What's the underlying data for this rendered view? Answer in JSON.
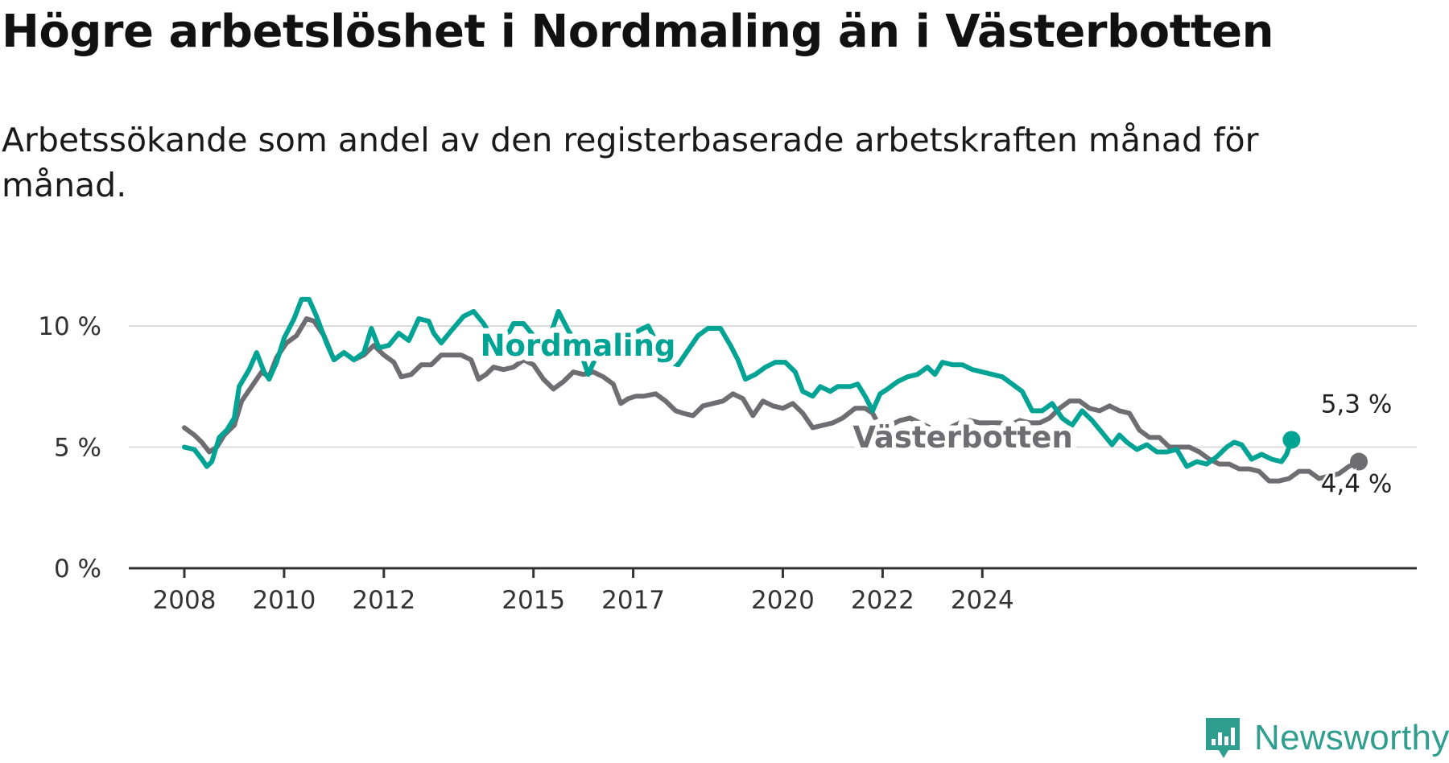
{
  "header": {
    "title": "Högre arbetslöshet i Nordmaling än i Västerbotten",
    "subtitle": "Arbetssökande som andel av den registerbaserade arbetskraften månad för månad."
  },
  "brand": {
    "name": "Newsworthy",
    "icon": "newsworthy-logo-icon",
    "color": "#2f9e8f"
  },
  "chart_data": {
    "type": "line",
    "x_unit": "year",
    "ylim": [
      0,
      13
    ],
    "yticks": [
      0,
      5,
      10
    ],
    "ytick_labels": [
      "0 %",
      "5 %",
      "10 %"
    ],
    "xticks": [
      2008,
      2010,
      2012,
      2015,
      2017,
      2020,
      2022,
      2024
    ],
    "xtick_labels": [
      "2008",
      "2010",
      "2012",
      "2015",
      "2017",
      "2020",
      "2022",
      "2024"
    ],
    "grid": true,
    "colors": {
      "Nordmaling": "#00a394",
      "Västerbotten": "#6d6d72"
    },
    "series": [
      {
        "name": "Nordmaling",
        "end_label": "5,3 %",
        "points": [
          [
            2008.0,
            5.0
          ],
          [
            2008.2,
            4.9
          ],
          [
            2008.35,
            4.5
          ],
          [
            2008.45,
            4.2
          ],
          [
            2008.55,
            4.4
          ],
          [
            2008.7,
            5.4
          ],
          [
            2008.85,
            5.7
          ],
          [
            2009.0,
            6.2
          ],
          [
            2009.1,
            7.5
          ],
          [
            2009.3,
            8.2
          ],
          [
            2009.45,
            8.9
          ],
          [
            2009.6,
            8.1
          ],
          [
            2009.7,
            7.8
          ],
          [
            2009.85,
            8.5
          ],
          [
            2010.0,
            9.5
          ],
          [
            2010.2,
            10.3
          ],
          [
            2010.35,
            11.1
          ],
          [
            2010.5,
            11.1
          ],
          [
            2010.65,
            10.4
          ],
          [
            2010.85,
            9.3
          ],
          [
            2011.0,
            8.6
          ],
          [
            2011.2,
            8.9
          ],
          [
            2011.4,
            8.6
          ],
          [
            2011.6,
            8.9
          ],
          [
            2011.75,
            9.9
          ],
          [
            2011.9,
            9.1
          ],
          [
            2012.1,
            9.2
          ],
          [
            2012.3,
            9.7
          ],
          [
            2012.5,
            9.4
          ],
          [
            2012.7,
            10.3
          ],
          [
            2012.9,
            10.2
          ],
          [
            2013.0,
            9.7
          ],
          [
            2013.15,
            9.3
          ],
          [
            2013.35,
            9.8
          ],
          [
            2013.6,
            10.4
          ],
          [
            2013.8,
            10.6
          ],
          [
            2014.0,
            10.1
          ],
          [
            2014.2,
            9.4
          ],
          [
            2014.4,
            9.3
          ],
          [
            2014.6,
            10.1
          ],
          [
            2014.8,
            10.1
          ],
          [
            2015.0,
            9.6
          ],
          [
            2015.2,
            8.8
          ],
          [
            2015.5,
            10.6
          ],
          [
            2015.7,
            9.8
          ],
          [
            2015.9,
            9.2
          ],
          [
            2016.1,
            8.0
          ],
          [
            2016.25,
            8.7
          ],
          [
            2016.5,
            8.8
          ],
          [
            2016.7,
            9.3
          ],
          [
            2016.9,
            9.0
          ],
          [
            2017.1,
            9.8
          ],
          [
            2017.3,
            10.0
          ],
          [
            2017.5,
            9.2
          ],
          [
            2017.7,
            8.5
          ],
          [
            2017.9,
            8.4
          ],
          [
            2018.1,
            9.0
          ],
          [
            2018.3,
            9.6
          ],
          [
            2018.5,
            9.9
          ],
          [
            2018.75,
            9.9
          ],
          [
            2018.95,
            9.2
          ],
          [
            2019.1,
            8.6
          ],
          [
            2019.25,
            7.8
          ],
          [
            2019.45,
            8.0
          ],
          [
            2019.65,
            8.3
          ],
          [
            2019.85,
            8.5
          ],
          [
            2020.05,
            8.5
          ],
          [
            2020.25,
            8.1
          ],
          [
            2020.4,
            7.3
          ],
          [
            2020.6,
            7.1
          ],
          [
            2020.75,
            7.5
          ],
          [
            2020.95,
            7.3
          ],
          [
            2021.1,
            7.5
          ],
          [
            2021.35,
            7.5
          ],
          [
            2021.5,
            7.6
          ],
          [
            2021.65,
            7.1
          ],
          [
            2021.8,
            6.5
          ],
          [
            2021.95,
            7.2
          ],
          [
            2022.1,
            7.4
          ],
          [
            2022.3,
            7.7
          ],
          [
            2022.5,
            7.9
          ],
          [
            2022.7,
            8.0
          ],
          [
            2022.9,
            8.3
          ],
          [
            2023.05,
            8.0
          ],
          [
            2023.2,
            8.5
          ],
          [
            2023.4,
            8.4
          ],
          [
            2023.6,
            8.4
          ],
          [
            2023.8,
            8.2
          ],
          [
            2024.0,
            8.1
          ],
          [
            2024.2,
            8.0
          ],
          [
            2024.4,
            7.9
          ],
          [
            2024.6,
            7.6
          ],
          [
            2024.8,
            7.3
          ],
          [
            2025.0,
            6.5
          ],
          [
            2025.2,
            6.5
          ],
          [
            2025.4,
            6.8
          ],
          [
            2025.6,
            6.2
          ],
          [
            2025.8,
            5.9
          ],
          [
            2026.0,
            6.5
          ],
          [
            2026.2,
            6.1
          ],
          [
            2026.4,
            5.6
          ],
          [
            2026.6,
            5.1
          ],
          [
            2026.75,
            5.5
          ],
          [
            2026.9,
            5.2
          ],
          [
            2027.1,
            4.9
          ],
          [
            2027.3,
            5.1
          ],
          [
            2027.5,
            4.8
          ],
          [
            2027.7,
            4.8
          ],
          [
            2027.9,
            4.9
          ],
          [
            2028.1,
            4.2
          ],
          [
            2028.3,
            4.4
          ],
          [
            2028.5,
            4.3
          ],
          [
            2028.7,
            4.6
          ],
          [
            2028.9,
            5.0
          ],
          [
            2029.05,
            5.2
          ],
          [
            2029.2,
            5.1
          ],
          [
            2029.4,
            4.5
          ],
          [
            2029.6,
            4.7
          ],
          [
            2029.8,
            4.5
          ],
          [
            2030.0,
            4.4
          ],
          [
            2030.1,
            4.7
          ],
          [
            2030.2,
            5.3
          ]
        ]
      },
      {
        "name": "Västerbotten",
        "end_label": "4,4 %",
        "points": [
          [
            2008.0,
            5.8
          ],
          [
            2008.2,
            5.5
          ],
          [
            2008.35,
            5.2
          ],
          [
            2008.5,
            4.8
          ],
          [
            2008.65,
            5.0
          ],
          [
            2008.8,
            5.5
          ],
          [
            2009.0,
            5.9
          ],
          [
            2009.15,
            6.9
          ],
          [
            2009.35,
            7.5
          ],
          [
            2009.55,
            8.1
          ],
          [
            2009.7,
            7.9
          ],
          [
            2009.85,
            8.7
          ],
          [
            2010.05,
            9.3
          ],
          [
            2010.25,
            9.6
          ],
          [
            2010.45,
            10.3
          ],
          [
            2010.6,
            10.2
          ],
          [
            2010.8,
            9.6
          ],
          [
            2011.0,
            8.6
          ],
          [
            2011.2,
            8.9
          ],
          [
            2011.4,
            8.6
          ],
          [
            2011.6,
            8.8
          ],
          [
            2011.8,
            9.2
          ],
          [
            2012.0,
            8.8
          ],
          [
            2012.2,
            8.5
          ],
          [
            2012.35,
            7.9
          ],
          [
            2012.55,
            8.0
          ],
          [
            2012.75,
            8.4
          ],
          [
            2012.95,
            8.4
          ],
          [
            2013.15,
            8.8
          ],
          [
            2013.35,
            8.8
          ],
          [
            2013.55,
            8.8
          ],
          [
            2013.75,
            8.6
          ],
          [
            2013.9,
            7.8
          ],
          [
            2014.05,
            8.0
          ],
          [
            2014.2,
            8.3
          ],
          [
            2014.4,
            8.2
          ],
          [
            2014.6,
            8.3
          ],
          [
            2014.8,
            8.6
          ],
          [
            2015.0,
            8.4
          ],
          [
            2015.2,
            7.8
          ],
          [
            2015.4,
            7.4
          ],
          [
            2015.6,
            7.7
          ],
          [
            2015.8,
            8.1
          ],
          [
            2016.0,
            8.0
          ],
          [
            2016.2,
            8.1
          ],
          [
            2016.4,
            7.9
          ],
          [
            2016.6,
            7.6
          ],
          [
            2016.75,
            6.8
          ],
          [
            2016.9,
            7.0
          ],
          [
            2017.05,
            7.1
          ],
          [
            2017.2,
            7.1
          ],
          [
            2017.45,
            7.2
          ],
          [
            2017.65,
            6.9
          ],
          [
            2017.85,
            6.5
          ],
          [
            2018.0,
            6.4
          ],
          [
            2018.2,
            6.3
          ],
          [
            2018.4,
            6.7
          ],
          [
            2018.6,
            6.8
          ],
          [
            2018.8,
            6.9
          ],
          [
            2019.0,
            7.2
          ],
          [
            2019.2,
            7.0
          ],
          [
            2019.4,
            6.3
          ],
          [
            2019.6,
            6.9
          ],
          [
            2019.8,
            6.7
          ],
          [
            2020.0,
            6.6
          ],
          [
            2020.2,
            6.8
          ],
          [
            2020.4,
            6.4
          ],
          [
            2020.6,
            5.8
          ],
          [
            2020.8,
            5.9
          ],
          [
            2021.0,
            6.0
          ],
          [
            2021.2,
            6.2
          ],
          [
            2021.45,
            6.6
          ],
          [
            2021.65,
            6.6
          ],
          [
            2021.8,
            6.4
          ],
          [
            2021.95,
            5.8
          ],
          [
            2022.15,
            5.9
          ],
          [
            2022.35,
            6.1
          ],
          [
            2022.55,
            6.2
          ],
          [
            2022.75,
            6.0
          ],
          [
            2022.95,
            5.8
          ],
          [
            2023.15,
            5.6
          ],
          [
            2023.35,
            5.8
          ],
          [
            2023.55,
            6.0
          ],
          [
            2023.75,
            6.1
          ],
          [
            2023.95,
            6.0
          ],
          [
            2024.15,
            6.0
          ],
          [
            2024.35,
            6.0
          ],
          [
            2024.55,
            5.9
          ],
          [
            2024.75,
            6.1
          ],
          [
            2024.95,
            6.0
          ],
          [
            2025.15,
            6.0
          ],
          [
            2025.35,
            6.2
          ],
          [
            2025.55,
            6.6
          ],
          [
            2025.75,
            6.9
          ],
          [
            2025.95,
            6.9
          ],
          [
            2026.15,
            6.6
          ],
          [
            2026.35,
            6.5
          ],
          [
            2026.55,
            6.7
          ],
          [
            2026.75,
            6.5
          ],
          [
            2026.95,
            6.4
          ],
          [
            2027.15,
            5.7
          ],
          [
            2027.35,
            5.4
          ],
          [
            2027.55,
            5.4
          ],
          [
            2027.75,
            5.0
          ],
          [
            2027.95,
            5.0
          ],
          [
            2028.15,
            5.0
          ],
          [
            2028.35,
            4.8
          ],
          [
            2028.55,
            4.5
          ],
          [
            2028.75,
            4.3
          ],
          [
            2028.95,
            4.3
          ],
          [
            2029.15,
            4.1
          ],
          [
            2029.35,
            4.1
          ],
          [
            2029.55,
            4.0
          ],
          [
            2029.75,
            3.6
          ],
          [
            2029.95,
            3.6
          ],
          [
            2030.15,
            3.7
          ],
          [
            2030.35,
            4.0
          ],
          [
            2030.55,
            4.0
          ],
          [
            2030.75,
            3.7
          ],
          [
            2030.95,
            3.8
          ],
          [
            2031.15,
            3.9
          ],
          [
            2031.35,
            4.2
          ],
          [
            2031.55,
            4.4
          ]
        ]
      }
    ]
  }
}
